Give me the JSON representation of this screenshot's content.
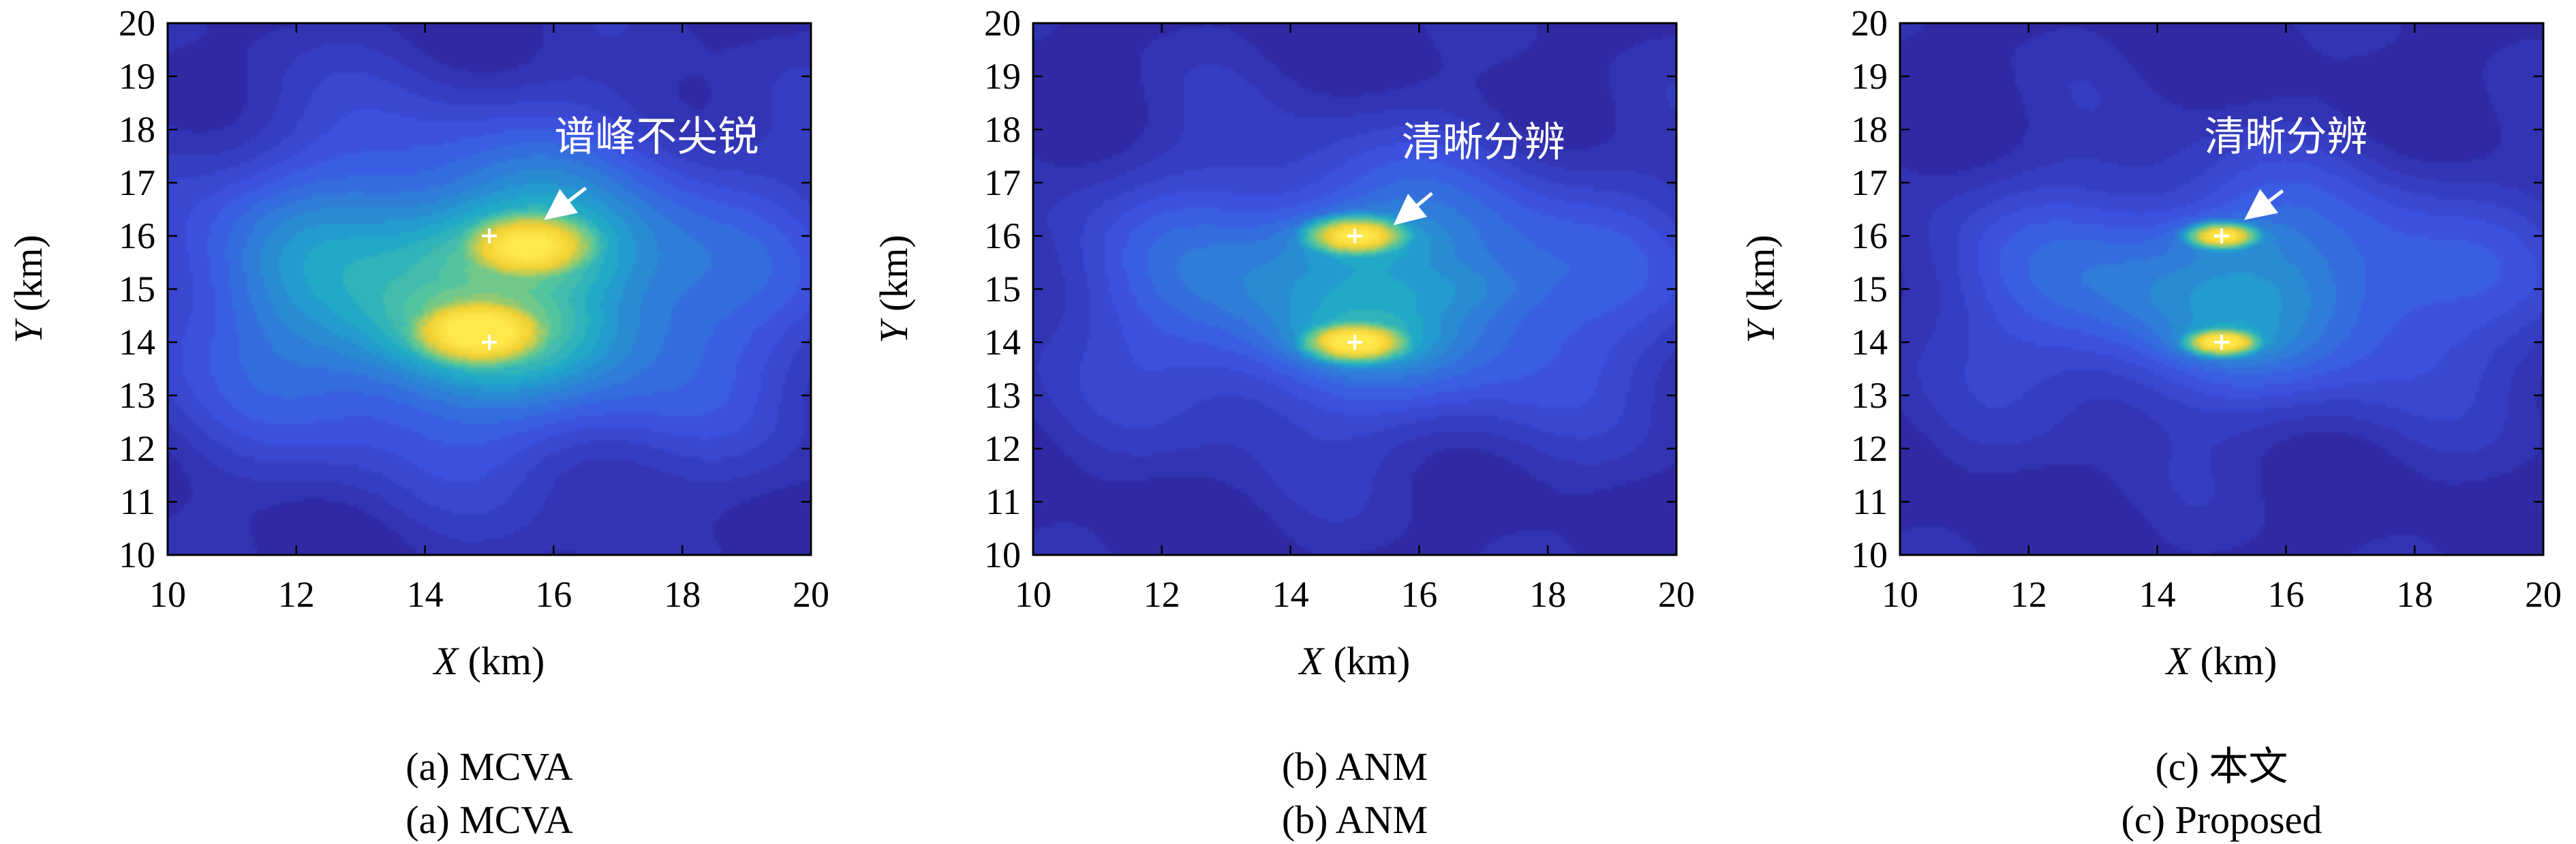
{
  "colors": {
    "low": "#2f2aa4",
    "mid_low": "#3d55e6",
    "mid": "#1fa9c9",
    "mid_high": "#56c79b",
    "high": "#f2d032",
    "peak": "#ffe84a",
    "annotation": "#ffffff"
  },
  "chart_data": [
    {
      "type": "heatmap",
      "subtype": "filled-contour",
      "xlabel_var": "X",
      "xlabel_unit": " (km)",
      "ylabel_var": "Y",
      "ylabel_unit": " (km)",
      "xlim": [
        10,
        20
      ],
      "ylim": [
        10,
        20
      ],
      "xticks": [
        10,
        12,
        14,
        16,
        18,
        20
      ],
      "yticks": [
        10,
        11,
        12,
        13,
        14,
        15,
        16,
        17,
        18,
        19,
        20
      ],
      "true_targets": [
        {
          "x": 15,
          "y": 16
        },
        {
          "x": 15,
          "y": 14
        }
      ],
      "peaks": [
        {
          "x": 15.6,
          "y": 15.8,
          "amplitude": 0.97,
          "sx": 0.95,
          "sy": 0.55
        },
        {
          "x": 14.8,
          "y": 14.2,
          "amplitude": 1.0,
          "sx": 0.95,
          "sy": 0.55
        }
      ],
      "background": {
        "x": 14.8,
        "y": 15.0,
        "amplitude": 0.55,
        "sx": 3.2,
        "sy": 2.0
      },
      "annotation": {
        "text": "谱峰不尖锐",
        "tip": {
          "x": 15.85,
          "y": 16.3
        },
        "from": {
          "x": 16.5,
          "y": 16.9
        },
        "text_at": {
          "x": 17.6,
          "y": 17.6
        }
      },
      "caption_lines": [
        "(a) MCVA",
        "(a) MCVA"
      ]
    },
    {
      "type": "heatmap",
      "subtype": "filled-contour",
      "xlabel_var": "X",
      "xlabel_unit": " (km)",
      "ylabel_var": "Y",
      "ylabel_unit": " (km)",
      "xlim": [
        10,
        20
      ],
      "ylim": [
        10,
        20
      ],
      "xticks": [
        10,
        12,
        14,
        16,
        18,
        20
      ],
      "yticks": [
        10,
        11,
        12,
        13,
        14,
        15,
        16,
        17,
        18,
        19,
        20
      ],
      "true_targets": [
        {
          "x": 15,
          "y": 16
        },
        {
          "x": 15,
          "y": 14
        }
      ],
      "peaks": [
        {
          "x": 15.0,
          "y": 16.0,
          "amplitude": 1.0,
          "sx": 0.65,
          "sy": 0.3
        },
        {
          "x": 15.0,
          "y": 14.0,
          "amplitude": 1.0,
          "sx": 0.65,
          "sy": 0.3
        },
        {
          "x": 17.0,
          "y": 15.0,
          "amplitude": 0.25,
          "sx": 0.6,
          "sy": 0.3
        }
      ],
      "background": {
        "x": 15.3,
        "y": 15.0,
        "amplitude": 0.42,
        "sx": 3.0,
        "sy": 1.7
      },
      "annotation": {
        "text": "清晰分辨",
        "tip": {
          "x": 15.6,
          "y": 16.2
        },
        "from": {
          "x": 16.2,
          "y": 16.8
        },
        "text_at": {
          "x": 17.0,
          "y": 17.5
        }
      },
      "caption_lines": [
        "(b) ANM",
        "(b) ANM"
      ]
    },
    {
      "type": "heatmap",
      "subtype": "filled-contour",
      "xlabel_var": "X",
      "xlabel_unit": " (km)",
      "ylabel_var": "Y",
      "ylabel_unit": " (km)",
      "xlim": [
        10,
        20
      ],
      "ylim": [
        10,
        20
      ],
      "xticks": [
        10,
        12,
        14,
        16,
        18,
        20
      ],
      "yticks": [
        10,
        11,
        12,
        13,
        14,
        15,
        16,
        17,
        18,
        19,
        20
      ],
      "true_targets": [
        {
          "x": 15,
          "y": 16
        },
        {
          "x": 15,
          "y": 14
        }
      ],
      "peaks": [
        {
          "x": 15.0,
          "y": 16.0,
          "amplitude": 1.0,
          "sx": 0.45,
          "sy": 0.2
        },
        {
          "x": 15.0,
          "y": 14.0,
          "amplitude": 1.0,
          "sx": 0.45,
          "sy": 0.2
        }
      ],
      "background": {
        "x": 15.3,
        "y": 15.0,
        "amplitude": 0.38,
        "sx": 3.0,
        "sy": 1.5
      },
      "annotation": {
        "text": "清晰分辨",
        "tip": {
          "x": 15.35,
          "y": 16.3
        },
        "from": {
          "x": 15.95,
          "y": 16.85
        },
        "text_at": {
          "x": 16.0,
          "y": 17.6
        }
      },
      "caption_lines": [
        "(c) 本文",
        "(c) Proposed"
      ]
    }
  ]
}
